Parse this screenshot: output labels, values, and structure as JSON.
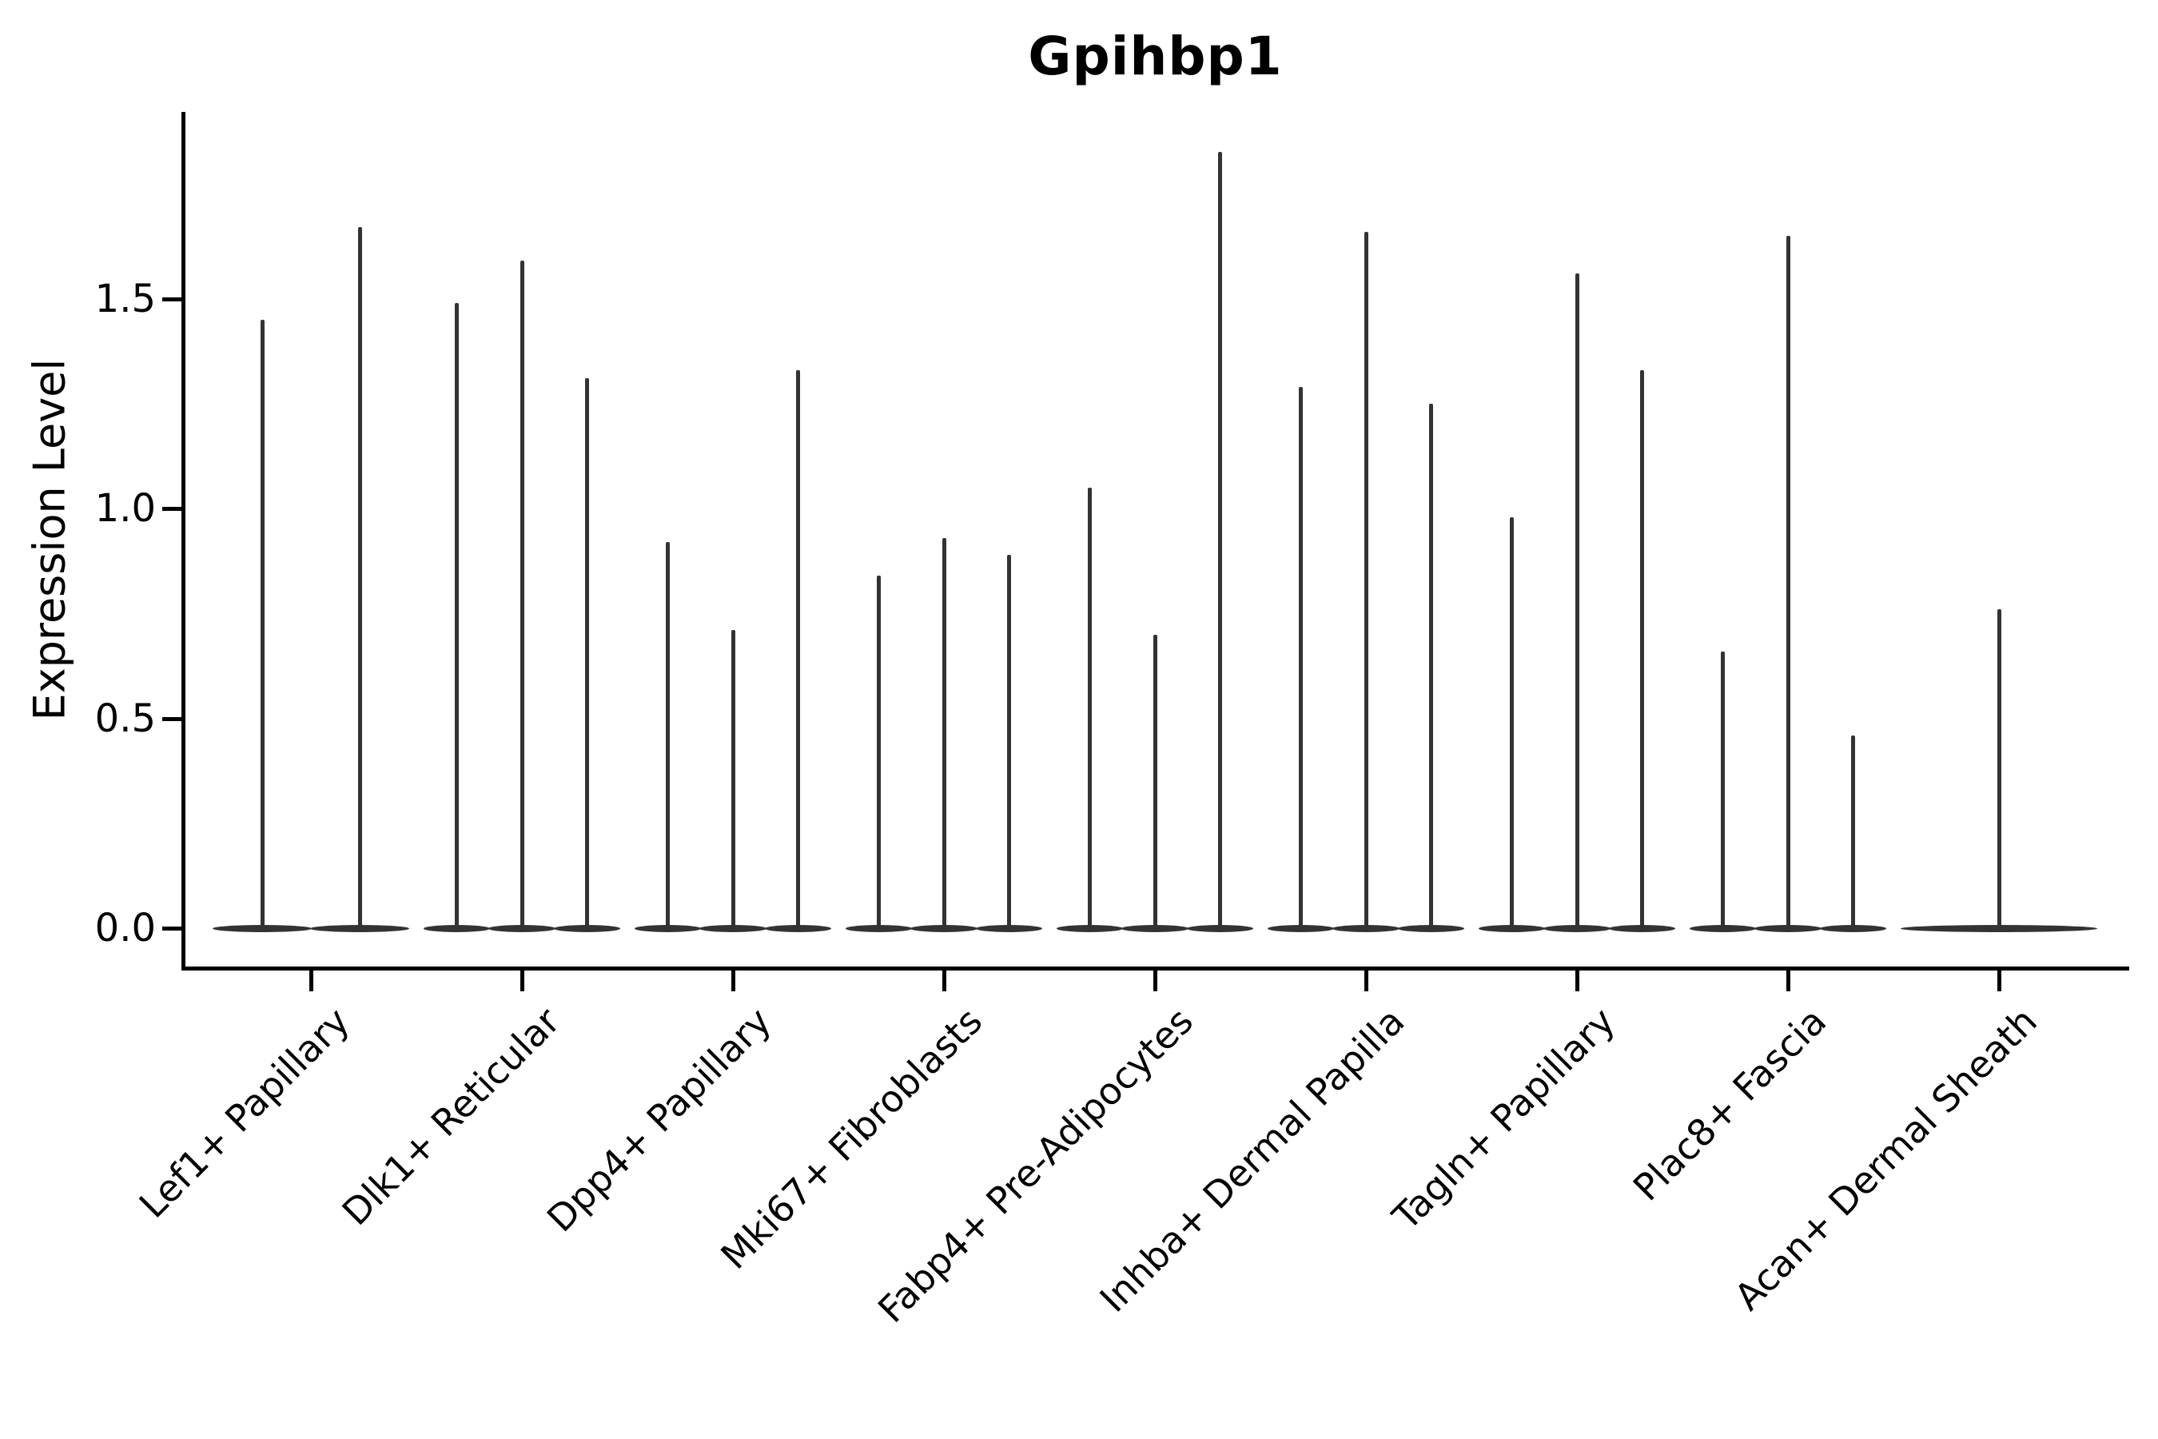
{
  "figure": {
    "title": "Gpihbp1",
    "background_color": "#ffffff"
  },
  "chart_data": {
    "type": "violin",
    "title": "Gpihbp1",
    "xlabel": "",
    "ylabel": "Expression Level",
    "ytick_labels": [
      "0.0",
      "0.5",
      "1.0",
      "1.5"
    ],
    "ytick_values": [
      0.0,
      0.5,
      1.0,
      1.5
    ],
    "ylim": [
      -0.09,
      1.95
    ],
    "grid": false,
    "legend": "none",
    "x_tick_rotation_deg": 45,
    "categories": [
      "Lef1+ Papillary",
      "Dlk1+ Reticular",
      "Dpp4+ Papillary",
      "Mki67+ Fibroblasts",
      "Fabp4+ Pre-Adipocytes",
      "Inhba+ Dermal Papilla",
      "Tagln+ Papillary",
      "Plac8+ Fascia",
      "Acan+ Dermal Sheath"
    ],
    "groups": [
      {
        "category": "Lef1+ Papillary",
        "n_violins": 2,
        "violin_max_expression": [
          1.45,
          1.67
        ]
      },
      {
        "category": "Dlk1+ Reticular",
        "n_violins": 3,
        "violin_max_expression": [
          1.49,
          1.59,
          1.31
        ]
      },
      {
        "category": "Dpp4+ Papillary",
        "n_violins": 3,
        "violin_max_expression": [
          0.92,
          0.71,
          1.33
        ]
      },
      {
        "category": "Mki67+ Fibroblasts",
        "n_violins": 3,
        "violin_max_expression": [
          0.84,
          0.93,
          0.89
        ]
      },
      {
        "category": "Fabp4+ Pre-Adipocytes",
        "n_violins": 3,
        "violin_max_expression": [
          1.05,
          0.7,
          1.85
        ]
      },
      {
        "category": "Inhba+ Dermal Papilla",
        "n_violins": 3,
        "violin_max_expression": [
          1.29,
          1.66,
          1.25
        ]
      },
      {
        "category": "Tagln+ Papillary",
        "n_violins": 3,
        "violin_max_expression": [
          0.98,
          1.56,
          1.33
        ]
      },
      {
        "category": "Plac8+ Fascia",
        "n_violins": 3,
        "violin_max_expression": [
          0.66,
          1.65,
          0.46
        ]
      },
      {
        "category": "Acan+ Dermal Sheath",
        "n_violins": 1,
        "violin_max_expression": [
          0.76
        ]
      }
    ],
    "violin_baseline_value": 0.0,
    "colors": {
      "violin": "#333333",
      "axis": "#000000",
      "text": "#000000",
      "background": "#ffffff"
    }
  }
}
